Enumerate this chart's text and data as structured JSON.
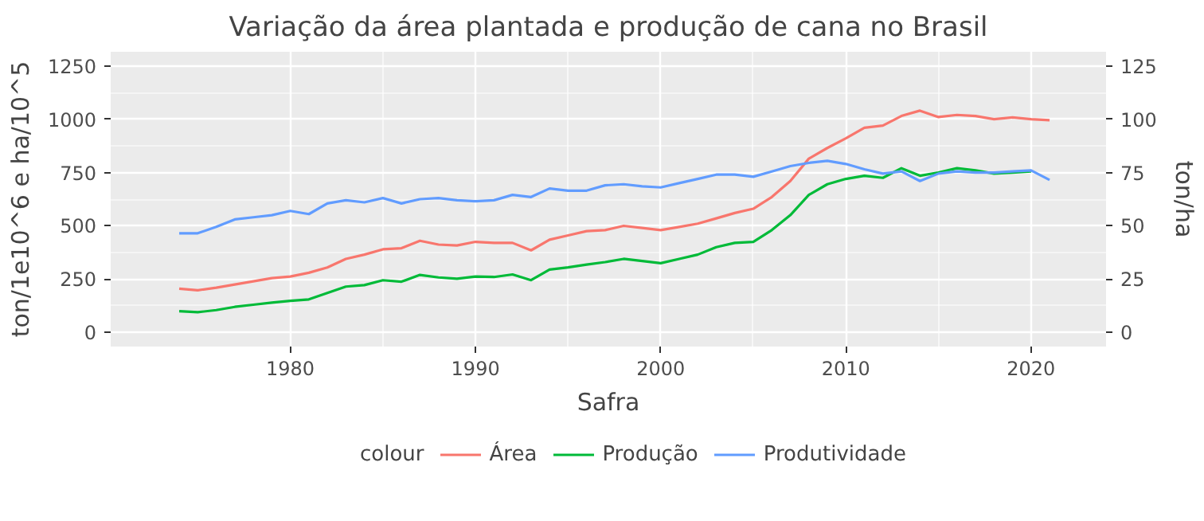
{
  "chart_data": {
    "type": "line",
    "title": "Variação da área plantada e produção de cana no Brasil",
    "xlabel": "Safra",
    "ylabel": "ton/1e10^6 e ha/10^5",
    "y2label": "ton/ha",
    "legend_title": "colour",
    "legend": "bottom",
    "grid": true,
    "x": [
      1974,
      1975,
      1976,
      1977,
      1978,
      1979,
      1980,
      1981,
      1982,
      1983,
      1984,
      1985,
      1986,
      1987,
      1988,
      1989,
      1990,
      1991,
      1992,
      1993,
      1994,
      1995,
      1996,
      1997,
      1998,
      1999,
      2000,
      2001,
      2002,
      2003,
      2004,
      2005,
      2006,
      2007,
      2008,
      2009,
      2010,
      2011,
      2012,
      2013,
      2014,
      2015,
      2016,
      2017,
      2018,
      2019,
      2020,
      2021
    ],
    "xlim": [
      1970.3,
      2024.05
    ],
    "xticks": [
      1980,
      1990,
      2000,
      2010,
      2020
    ],
    "ylim": [
      -66,
      1316
    ],
    "yticks": [
      {
        "value": 0,
        "label": "0"
      },
      {
        "value": 250,
        "label": "250"
      },
      {
        "value": 500,
        "label": "500"
      },
      {
        "value": 750,
        "label": "750"
      },
      {
        "value": 1000,
        "label": "1000"
      },
      {
        "value": 1250,
        "label": "1250"
      }
    ],
    "y2lim": [
      -6.6,
      131.6
    ],
    "y2ticks": [
      0,
      25,
      50,
      75,
      100,
      125
    ],
    "series": [
      {
        "name": "Área",
        "color": "#f8766d",
        "values": [
          205,
          198,
          210,
          225,
          240,
          255,
          262,
          280,
          305,
          345,
          365,
          390,
          395,
          430,
          412,
          408,
          425,
          420,
          420,
          385,
          435,
          455,
          475,
          480,
          500,
          490,
          480,
          495,
          510,
          535,
          560,
          580,
          635,
          710,
          815,
          865,
          910,
          960,
          970,
          1015,
          1040,
          1010,
          1020,
          1015,
          1000,
          1008,
          1000,
          995
        ]
      },
      {
        "name": "Produção",
        "color": "#00ba38",
        "values": [
          100,
          95,
          105,
          120,
          130,
          140,
          148,
          155,
          185,
          215,
          222,
          245,
          238,
          270,
          258,
          252,
          262,
          260,
          272,
          245,
          295,
          305,
          318,
          330,
          345,
          335,
          325,
          345,
          365,
          400,
          420,
          425,
          480,
          550,
          645,
          695,
          720,
          735,
          725,
          770,
          735,
          750,
          770,
          760,
          745,
          750,
          755,
          null
        ]
      },
      {
        "name": "Produtividade",
        "color": "#619cff",
        "axis": "y2",
        "values": [
          46.5,
          46.5,
          49.5,
          53,
          54,
          55,
          57,
          55.5,
          60.5,
          62,
          61,
          63,
          60.5,
          62.5,
          63,
          62,
          61.5,
          62,
          64.5,
          63.5,
          67.5,
          66.5,
          66.5,
          69,
          69.5,
          68.5,
          68,
          70,
          72,
          74,
          74,
          73,
          75.5,
          78,
          79.5,
          80.5,
          79,
          76.5,
          74.5,
          75.5,
          71,
          74.5,
          75.5,
          75,
          75,
          75.5,
          76,
          71.5
        ]
      }
    ]
  }
}
